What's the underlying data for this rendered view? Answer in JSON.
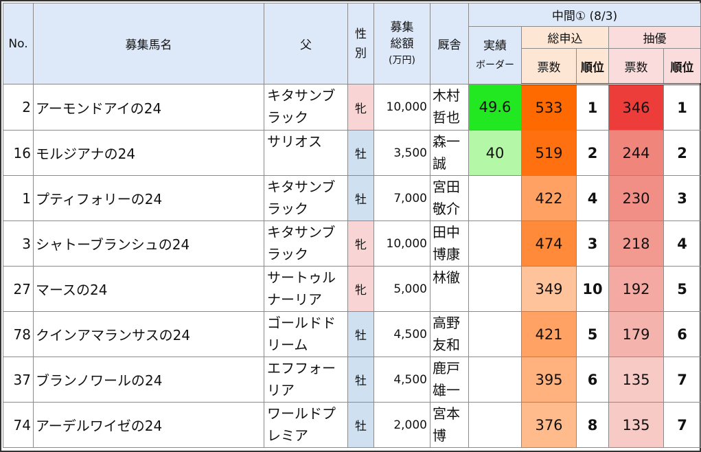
{
  "headers": {
    "no": "No.",
    "name": "募集馬名",
    "sire": "父",
    "sex": "性別",
    "total_line1": "募集",
    "total_line2": "総額",
    "total_unit": "(万円)",
    "stable": "厩舎",
    "interim": "中間① (8/3)",
    "border_line1": "実績",
    "border_line2": "ボーダー",
    "total_apps": "総申込",
    "lottery": "抽優",
    "votes": "票数",
    "rank": "順位"
  },
  "colors": {
    "border_high": "#22e822",
    "border_mid": "#b4f7a6",
    "total_scale": [
      "#ff6a00",
      "#ff7d21",
      "#ffa364",
      "#ffb17e",
      "#ffc39a"
    ],
    "lottery_scale": [
      "#ec3d3a",
      "#f07b73",
      "#f2938b",
      "#f5aba6",
      "#f8c5c2"
    ]
  },
  "rows": [
    {
      "no": "2",
      "name": "アーモンドアイの24",
      "sire1": "キタサンブ",
      "sire2": "ラック",
      "sex": "牝",
      "sex_type": "f",
      "total": "10,000",
      "stable1": "木村",
      "stable2": "哲也",
      "border": "49.6",
      "border_color": "#22e822",
      "votes": "533",
      "votes_color": "#ff6a00",
      "vrank": "1",
      "lot": "346",
      "lot_color": "#ec3d3a",
      "lrank": "1"
    },
    {
      "no": "16",
      "name": "モルジアナの24",
      "sire1": "サリオス",
      "sire2": "",
      "sex": "牡",
      "sex_type": "m",
      "total": "3,500",
      "stable1": "森一",
      "stable2": "誠",
      "border": "40",
      "border_color": "#b4f7a6",
      "votes": "519",
      "votes_color": "#ff7010",
      "vrank": "2",
      "lot": "244",
      "lot_color": "#f0857c",
      "lrank": "2"
    },
    {
      "no": "1",
      "name": "プティフォリーの24",
      "sire1": "キタサンブ",
      "sire2": "ラック",
      "sex": "牡",
      "sex_type": "m",
      "total": "7,000",
      "stable1": "宮田",
      "stable2": "敬介",
      "border": "",
      "border_color": "#ffffff",
      "votes": "422",
      "votes_color": "#ffa162",
      "vrank": "4",
      "lot": "230",
      "lot_color": "#f18f86",
      "lrank": "3"
    },
    {
      "no": "3",
      "name": "シャトーブランシュの24",
      "sire1": "キタサンブ",
      "sire2": "ラック",
      "sex": "牝",
      "sex_type": "f",
      "total": "10,000",
      "stable1": "田中",
      "stable2": "博康",
      "border": "",
      "border_color": "#ffffff",
      "votes": "474",
      "votes_color": "#ff8a3a",
      "vrank": "3",
      "lot": "218",
      "lot_color": "#f29990",
      "lrank": "4"
    },
    {
      "no": "27",
      "name": "マースの24",
      "sire1": "サートゥル",
      "sire2": "ナーリア",
      "sex": "牝",
      "sex_type": "f",
      "total": "5,000",
      "stable1": "林徹",
      "stable2": "",
      "border": "",
      "border_color": "#ffffff",
      "votes": "349",
      "votes_color": "#ffc39c",
      "vrank": "10",
      "lot": "192",
      "lot_color": "#f4aaa3",
      "lrank": "5"
    },
    {
      "no": "78",
      "name": "クインアマランサスの24",
      "sire1": "ゴールドド",
      "sire2": "リーム",
      "sex": "牡",
      "sex_type": "m",
      "total": "4,500",
      "stable1": "高野",
      "stable2": "友和",
      "border": "",
      "border_color": "#ffffff",
      "votes": "421",
      "votes_color": "#ffa263",
      "vrank": "5",
      "lot": "179",
      "lot_color": "#f5b3ad",
      "lrank": "6"
    },
    {
      "no": "37",
      "name": "ブランノワールの24",
      "sire1": "エフフォー",
      "sire2": "リア",
      "sex": "牡",
      "sex_type": "m",
      "total": "4,500",
      "stable1": "鹿戸",
      "stable2": "雄一",
      "border": "",
      "border_color": "#ffffff",
      "votes": "395",
      "votes_color": "#ffb17e",
      "vrank": "6",
      "lot": "135",
      "lot_color": "#f8cac6",
      "lrank": "7"
    },
    {
      "no": "74",
      "name": "アーデルワイゼの24",
      "sire1": "ワールドプ",
      "sire2": "レミア",
      "sex": "牡",
      "sex_type": "m",
      "total": "2,000",
      "stable1": "宮本",
      "stable2": "博",
      "border": "",
      "border_color": "#ffffff",
      "votes": "376",
      "votes_color": "#ffbb8c",
      "vrank": "8",
      "lot": "135",
      "lot_color": "#f8cac6",
      "lrank": "7"
    }
  ]
}
